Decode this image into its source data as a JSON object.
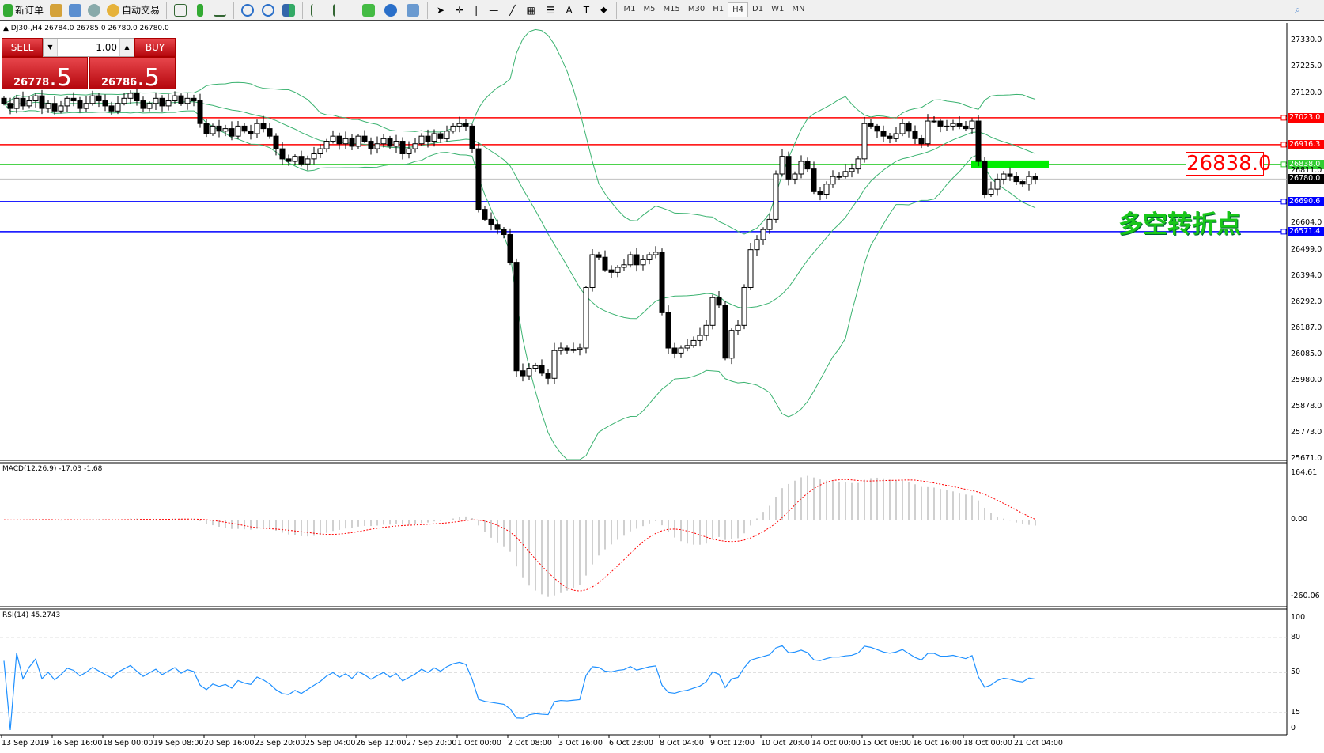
{
  "toolbar": {
    "new_order": "新订单",
    "auto_trading": "自动交易",
    "timeframes": [
      "M1",
      "M5",
      "M15",
      "M30",
      "H1",
      "H4",
      "D1",
      "W1",
      "MN"
    ],
    "active_timeframe": "H4"
  },
  "chart": {
    "header": "DJ30-,H4  26784.0 26785.0 26780.0 26780.0",
    "macd_label": "MACD(12,26,9) -17.03 -1.68",
    "rsi_label": "RSI(14) 45.2743",
    "annotation_price": "26838.0",
    "annotation_text": "多空转折点",
    "current_price": "26780.0"
  },
  "trade_panel": {
    "sell_label": "SELL",
    "buy_label": "BUY",
    "lot": "1.00",
    "sell_main": "26778",
    "sell_frac": ".5",
    "buy_main": "26786",
    "buy_frac": ".5"
  },
  "price_axis": [
    "27330.0",
    "27225.0",
    "27120.0",
    "26811.0",
    "26604.0",
    "26499.0",
    "26394.0",
    "26292.0",
    "26187.0",
    "26085.0",
    "25980.0",
    "25878.0",
    "25773.0",
    "25671.0"
  ],
  "levels": [
    {
      "value": "27023.0",
      "color": "#ff0000"
    },
    {
      "value": "26916.3",
      "color": "#ff0000"
    },
    {
      "value": "26838.0",
      "color": "#32cd32"
    },
    {
      "value": "26690.6",
      "color": "#0000ff"
    },
    {
      "value": "26571.4",
      "color": "#0000ff"
    }
  ],
  "macd_axis": [
    "164.61",
    "0.00",
    "-260.06"
  ],
  "rsi_axis": [
    "100",
    "80",
    "50",
    "15",
    "0"
  ],
  "time_axis": [
    "13 Sep 2019",
    "16 Sep 16:00",
    "18 Sep 00:00",
    "19 Sep 08:00",
    "20 Sep 16:00",
    "23 Sep 20:00",
    "25 Sep 04:00",
    "26 Sep 12:00",
    "27 Sep 20:00",
    "1 Oct 00:00",
    "2 Oct 08:00",
    "3 Oct 16:00",
    "6 Oct 23:00",
    "8 Oct 04:00",
    "9 Oct 12:00",
    "10 Oct 20:00",
    "14 Oct 00:00",
    "15 Oct 08:00",
    "16 Oct 16:00",
    "18 Oct 00:00",
    "21 Oct 04:00"
  ],
  "chart_data": {
    "type": "candlestick",
    "symbol": "DJ30-",
    "timeframe": "H4",
    "ylim": [
      25671,
      27330
    ],
    "closes": [
      27080,
      27060,
      27100,
      27070,
      27090,
      27110,
      27060,
      27080,
      27050,
      27070,
      27100,
      27090,
      27060,
      27080,
      27110,
      27090,
      27070,
      27050,
      27080,
      27100,
      27120,
      27090,
      27060,
      27080,
      27100,
      27070,
      27090,
      27110,
      27080,
      27100,
      27090,
      27000,
      26960,
      26990,
      26970,
      26980,
      26950,
      26990,
      26970,
      26960,
      27000,
      26980,
      26950,
      26900,
      26860,
      26850,
      26870,
      26840,
      26860,
      26880,
      26900,
      26930,
      26950,
      26920,
      26940,
      26910,
      26950,
      26930,
      26900,
      26920,
      26940,
      26910,
      26930,
      26880,
      26900,
      26920,
      26950,
      26930,
      26960,
      26940,
      26970,
      26990,
      27000,
      26990,
      26900,
      26660,
      26620,
      26600,
      26580,
      26560,
      26450,
      26020,
      26000,
      26030,
      26040,
      26010,
      25990,
      26100,
      26110,
      26100,
      26105,
      26110,
      26350,
      26480,
      26470,
      26420,
      26410,
      26430,
      26440,
      26480,
      26440,
      26460,
      26480,
      26490,
      26250,
      26110,
      26090,
      26110,
      26120,
      26140,
      26160,
      26200,
      26310,
      26280,
      26070,
      26180,
      26200,
      26350,
      26500,
      26540,
      26580,
      26620,
      26800,
      26870,
      26780,
      26800,
      26850,
      26820,
      26730,
      26720,
      26760,
      26790,
      26790,
      26810,
      26820,
      26860,
      27000,
      26990,
      26970,
      26950,
      26940,
      26960,
      27000,
      26970,
      26940,
      26920,
      27010,
      27010,
      26990,
      26990,
      27000,
      26990,
      26980,
      27010,
      26850,
      26720,
      26740,
      26780,
      26800,
      26790,
      26770,
      26760,
      26790,
      26780
    ],
    "indicators": [
      "Bollinger Bands(20,2)",
      "MACD(12,26,9)",
      "RSI(14)"
    ],
    "colors": {
      "bands": "#3cb371",
      "macd_hist": "#c0c0c0",
      "macd_signal": "#ff0000",
      "rsi": "#1e90ff"
    }
  }
}
